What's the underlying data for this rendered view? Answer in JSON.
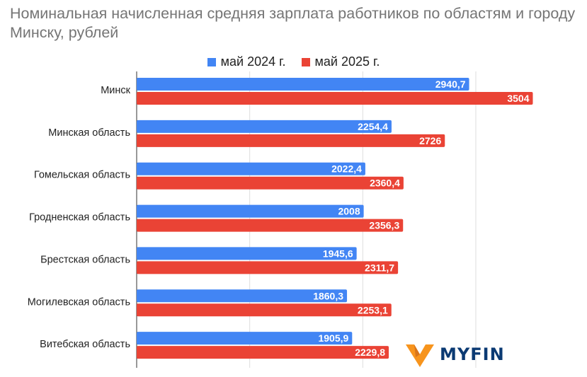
{
  "chart_data": {
    "type": "bar",
    "orientation": "horizontal",
    "title": "Номинальная начисленная средняя зарплата работников по областям и городу Минску, рублей",
    "categories": [
      "Минск",
      "Минская область",
      "Гомельская область",
      "Гродненская область",
      "Брестская область",
      "Могилевская область",
      "Витебская область"
    ],
    "series": [
      {
        "name": "май 2024 г.",
        "color": "#4285f4",
        "values": [
          2940.7,
          2254.4,
          2022.4,
          2008,
          1945.6,
          1860.3,
          1905.9
        ],
        "labels": [
          "2940,7",
          "2254,4",
          "2022,4",
          "2008",
          "1945,6",
          "1860,3",
          "1905,9"
        ]
      },
      {
        "name": "май 2025 г.",
        "color": "#ea4335",
        "values": [
          3504,
          2726,
          2360.4,
          2356.3,
          2311.7,
          2253.1,
          2229.8
        ],
        "labels": [
          "3504",
          "2726",
          "2360,4",
          "2356,3",
          "2311,7",
          "2253,1",
          "2229,8"
        ]
      }
    ],
    "xlim": [
      0,
      3600
    ],
    "gridlines": [
      0,
      1000,
      2000,
      3000
    ],
    "grid": true,
    "legend_position": "top-center"
  },
  "logo": {
    "text": "MYFIN",
    "mark_color": "#f7941d",
    "text_color": "#0b3a73"
  }
}
